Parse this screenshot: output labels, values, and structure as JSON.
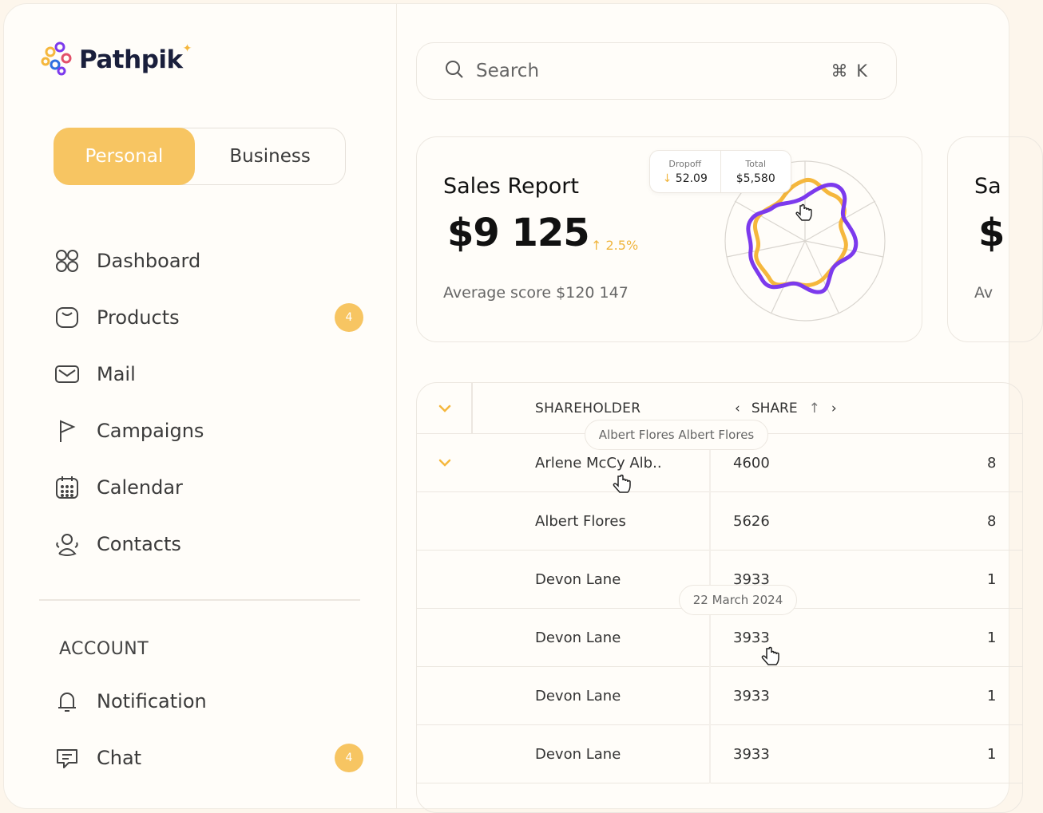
{
  "brand": {
    "name": "Pathpik"
  },
  "toggle": {
    "personal": "Personal",
    "business": "Business"
  },
  "nav": [
    {
      "label": "Dashboard",
      "icon": "grid-icon"
    },
    {
      "label": "Products",
      "icon": "bag-icon",
      "badge": "4"
    },
    {
      "label": "Mail",
      "icon": "mail-icon"
    },
    {
      "label": "Campaigns",
      "icon": "flag-icon"
    },
    {
      "label": "Calendar",
      "icon": "calendar-icon"
    },
    {
      "label": "Contacts",
      "icon": "contacts-icon"
    }
  ],
  "account": {
    "title": "ACCOUNT",
    "items": [
      {
        "label": "Notification",
        "icon": "bell-icon"
      },
      {
        "label": "Chat",
        "icon": "chat-icon",
        "badge": "4"
      }
    ]
  },
  "search": {
    "placeholder": "Search",
    "shortcut": "⌘ K"
  },
  "sales": {
    "title": "Sales Report",
    "amount": "$9 125",
    "trend": "↑ 2.5%",
    "average": "Average score $120 147",
    "tooltip": {
      "dropoff_label": "Dropoff",
      "dropoff_value": "52.09",
      "total_label": "Total",
      "total_value": "$5,580"
    }
  },
  "card2": {
    "title": "Sa",
    "amount": "$",
    "average": "Av"
  },
  "table": {
    "headers": {
      "shareholder": "SHAREHOLDER",
      "share": "SHARE"
    },
    "rows": [
      {
        "name": "Arlene McCy Alb..",
        "share": "4600",
        "extra": "8"
      },
      {
        "name": "Albert Flores",
        "share": "5626",
        "extra": "8"
      },
      {
        "name": "Devon Lane",
        "share": "3933",
        "extra": "1"
      },
      {
        "name": "Devon Lane",
        "share": "3933",
        "extra": "1"
      },
      {
        "name": "Devon Lane",
        "share": "3933",
        "extra": "1"
      },
      {
        "name": "Devon Lane",
        "share": "3933",
        "extra": "1"
      }
    ],
    "tooltip_name": "Albert Flores Albert Flores",
    "tooltip_date": "22 March 2024"
  },
  "colors": {
    "accent": "#f7c562",
    "purple": "#7c3aed",
    "orange": "#f5b73d"
  }
}
